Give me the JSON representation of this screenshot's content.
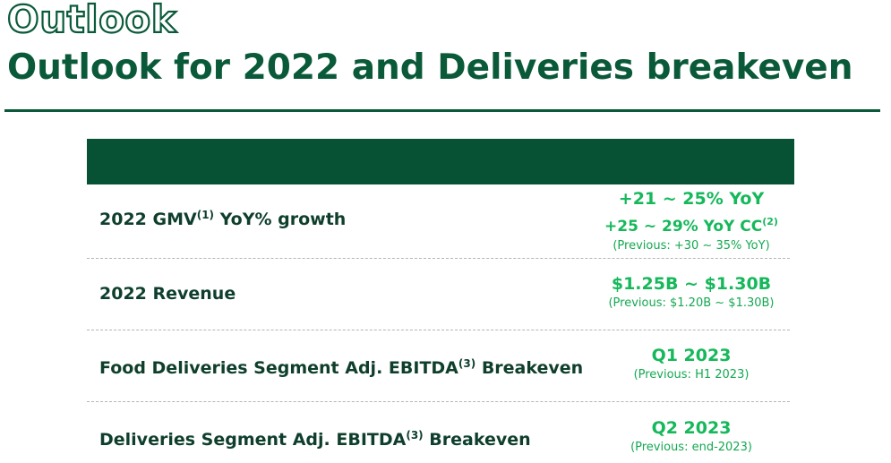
{
  "slide": {
    "section_label": "Outlook",
    "title": "Outlook for 2022 and Deliveries breakeven"
  },
  "colors": {
    "brand_dark_green": "#075234",
    "accent_green": "#15b85a",
    "divider": "#b5b5b5"
  },
  "rows": [
    {
      "label": "2022 GMV",
      "label_sup": "(1)",
      "label_suffix": " YoY% growth",
      "value_line1": "+21 ~ 25% YoY",
      "value_line2": "+25 ~ 29% YoY CC",
      "value_line2_sup": "(2)",
      "previous": "(Previous: +30 ~ 35% YoY)"
    },
    {
      "label": "2022 Revenue",
      "value_line1": "$1.25B ~ $1.30B",
      "previous": "(Previous: $1.20B ~ $1.30B)"
    },
    {
      "label": "Food Deliveries Segment Adj. EBITDA",
      "label_sup": "(3)",
      "label_suffix": " Breakeven",
      "value_line1": "Q1 2023",
      "previous": "(Previous: H1 2023)"
    },
    {
      "label": "Deliveries Segment Adj. EBITDA",
      "label_sup": "(3)",
      "label_suffix": " Breakeven",
      "value_line1": "Q2 2023",
      "previous": "(Previous: end-2023)"
    }
  ]
}
